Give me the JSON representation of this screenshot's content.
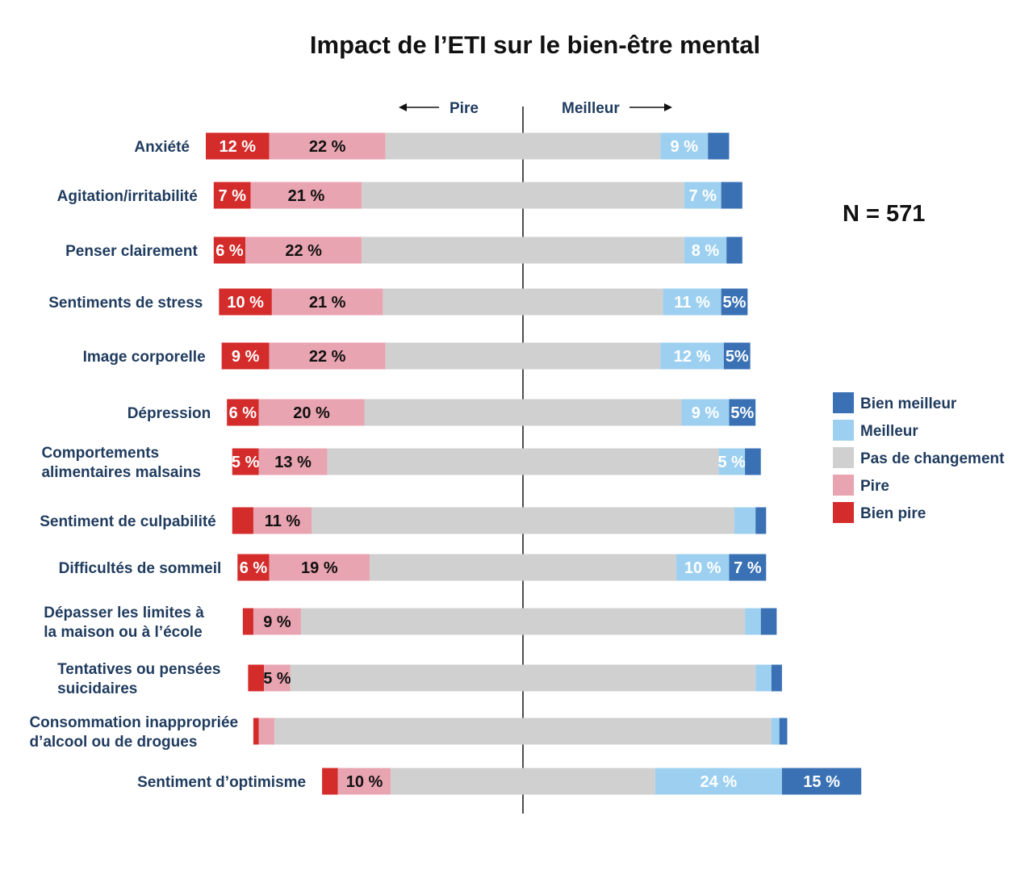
{
  "chart_data": {
    "type": "bar",
    "subtype": "diverging-stacked-horizontal",
    "title": "Impact de l’ETI sur le bien-être mental",
    "sample_size": "N = 571",
    "direction_labels": {
      "worse": "Pire",
      "better": "Meilleur"
    },
    "series": [
      {
        "name": "Bien pire",
        "color": "#d42b2b",
        "label_color": "#ffffff"
      },
      {
        "name": "Pire",
        "color": "#e8a4b0",
        "label_color": "#111111"
      },
      {
        "name": "Pas de changement",
        "color": "#d0d0d0",
        "label_color": "#111111"
      },
      {
        "name": "Meilleur",
        "color": "#9dd0f0",
        "label_color": "#ffffff"
      },
      {
        "name": "Bien meilleur",
        "color": "#3a71b4",
        "label_color": "#ffffff"
      }
    ],
    "legend_order": [
      "Bien meilleur",
      "Meilleur",
      "Pas de changement",
      "Pire",
      "Bien pire"
    ],
    "categories": [
      {
        "lines": [
          "Anxiété"
        ],
        "values": [
          12,
          22,
          52,
          9,
          4
        ],
        "labels": [
          "12 %",
          "22 %",
          "",
          "9 %",
          ""
        ]
      },
      {
        "lines": [
          "Agitation/irritabilité"
        ],
        "values": [
          7,
          21,
          61,
          7,
          4
        ],
        "labels": [
          "7 %",
          "21 %",
          "",
          "7 %",
          ""
        ]
      },
      {
        "lines": [
          "Penser clairement"
        ],
        "values": [
          6,
          22,
          61,
          8,
          3
        ],
        "labels": [
          "6 %",
          "22 %",
          "",
          "8 %",
          ""
        ]
      },
      {
        "lines": [
          "Sentiments de stress"
        ],
        "values": [
          10,
          21,
          53,
          11,
          5
        ],
        "labels": [
          "10 %",
          "21 %",
          "",
          "11 %",
          "5%"
        ]
      },
      {
        "lines": [
          "Image corporelle"
        ],
        "values": [
          9,
          22,
          52,
          12,
          5
        ],
        "labels": [
          "9 %",
          "22 %",
          "",
          "12 %",
          "5%"
        ]
      },
      {
        "lines": [
          "Dépression"
        ],
        "values": [
          6,
          20,
          60,
          9,
          5
        ],
        "labels": [
          "6 %",
          "20 %",
          "",
          "9 %",
          "5%"
        ]
      },
      {
        "lines": [
          "Comportements",
          "alimentaires malsains"
        ],
        "values": [
          5,
          13,
          74,
          5,
          3
        ],
        "labels": [
          "5 %",
          "13 %",
          "",
          "5 %",
          ""
        ]
      },
      {
        "lines": [
          "Sentiment de culpabilité"
        ],
        "values": [
          4,
          11,
          80,
          4,
          2
        ],
        "labels": [
          "",
          "11 %",
          "",
          "",
          ""
        ]
      },
      {
        "lines": [
          "Difficultés de sommeil"
        ],
        "values": [
          6,
          19,
          58,
          10,
          7
        ],
        "labels": [
          "6 %",
          "19 %",
          "",
          "10 %",
          "7 %"
        ]
      },
      {
        "lines": [
          "Dépasser les limites à",
          "la maison ou à l’école"
        ],
        "values": [
          2,
          9,
          84,
          3,
          3
        ],
        "labels": [
          "",
          "9 %",
          "",
          "",
          ""
        ]
      },
      {
        "lines": [
          "Tentatives ou pensées",
          "suicidaires"
        ],
        "values": [
          3,
          5,
          88,
          3,
          2
        ],
        "labels": [
          "",
          "5 %",
          "",
          "",
          ""
        ]
      },
      {
        "lines": [
          "Consommation inappropriée",
          "d’alcool ou de drogues"
        ],
        "values": [
          1,
          3,
          94,
          1.5,
          1.5
        ],
        "labels": [
          "",
          "",
          "",
          "",
          ""
        ]
      },
      {
        "lines": [
          "Sentiment d’optimisme"
        ],
        "values": [
          3,
          10,
          50,
          24,
          15
        ],
        "labels": [
          "",
          "10 %",
          "",
          "24 %",
          "15 %"
        ]
      }
    ],
    "xlabel": "",
    "ylabel": "",
    "unit": "%"
  }
}
